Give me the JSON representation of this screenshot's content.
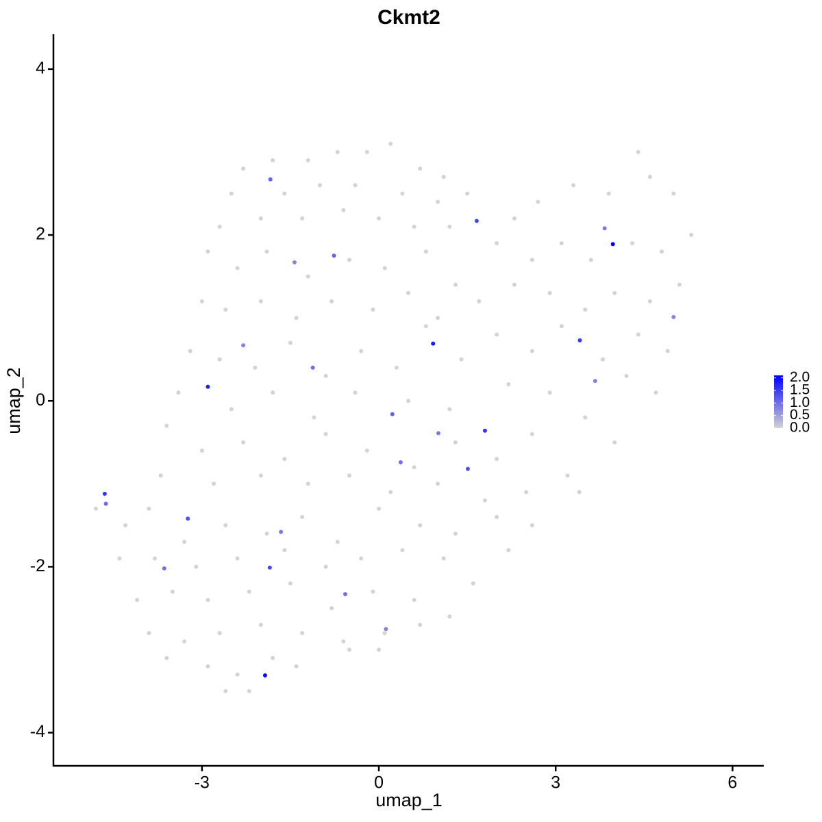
{
  "chart_data": {
    "type": "scatter",
    "title": "Ckmt2",
    "x_label": "umap_1",
    "y_label": "umap_2",
    "xlim": [
      -5.52,
      6.53
    ],
    "ylim": [
      -4.4,
      4.42
    ],
    "xticks": [
      -3,
      0,
      3,
      6
    ],
    "yticks": [
      -4,
      -2,
      0,
      2,
      4
    ],
    "low_color": "#d3d3d3",
    "high_color": "#0000ff",
    "colorbar_ticks": [
      {
        "value": 2,
        "label": "2.0"
      },
      {
        "value": 1.5,
        "label": "1.5"
      },
      {
        "value": 1,
        "label": "1.0"
      },
      {
        "value": 0.5,
        "label": "0.5"
      },
      {
        "value": 0,
        "label": "0.0"
      }
    ],
    "x": [
      -2.3,
      -1.8,
      -1.2,
      -0.7,
      -0.2,
      0.2,
      0.7,
      1.1,
      -2.5,
      -1.6,
      -1.0,
      -0.4,
      0.4,
      1.0,
      1.5,
      -2.7,
      -2.0,
      -1.3,
      -0.6,
      0.0,
      0.6,
      1.2,
      2.7,
      3.3,
      4.4,
      4.6,
      5.0,
      3.9,
      2.3,
      -2.9,
      -2.4,
      -1.9,
      -1.2,
      -0.5,
      0.1,
      0.8,
      1.3,
      2.0,
      2.6,
      3.1,
      3.6,
      4.3,
      4.8,
      5.3,
      -3.0,
      -2.6,
      -2.0,
      -1.4,
      -0.8,
      -0.1,
      0.5,
      1.0,
      1.7,
      2.3,
      2.9,
      3.5,
      4.0,
      4.6,
      5.1,
      -3.2,
      -2.7,
      -2.1,
      -1.5,
      -0.9,
      -0.3,
      0.3,
      0.8,
      1.4,
      2.0,
      2.6,
      3.1,
      3.8,
      4.4,
      4.9,
      -3.4,
      -2.5,
      -1.8,
      -1.1,
      -0.4,
      0.5,
      1.2,
      2.2,
      2.9,
      3.5,
      4.2,
      4.7,
      -3.6,
      -3.0,
      -2.3,
      -1.6,
      -0.9,
      -0.2,
      0.6,
      1.3,
      2.0,
      2.6,
      3.2,
      4.0,
      -3.7,
      -2.8,
      -2.0,
      -1.2,
      -0.5,
      0.2,
      1.0,
      1.8,
      2.5,
      3.4,
      -4.8,
      -4.3,
      -3.9,
      -3.3,
      -2.6,
      -1.9,
      -1.3,
      -0.7,
      0.0,
      0.7,
      1.3,
      2.0,
      2.6,
      -4.4,
      -3.8,
      -3.1,
      -2.4,
      -1.6,
      -0.9,
      -0.3,
      0.4,
      1.1,
      1.6,
      2.2,
      -4.1,
      -3.5,
      -2.9,
      -2.2,
      -1.5,
      -0.8,
      -0.1,
      0.6,
      1.2,
      -3.9,
      -3.3,
      -2.7,
      -2.0,
      -1.3,
      -0.6,
      0.1,
      0.7,
      -3.6,
      -2.9,
      -2.4,
      -1.8,
      -1.4,
      -0.5,
      0.0,
      -2.6,
      -2.2,
      -4.65,
      -4.63,
      -2.9,
      -1.93,
      3.97,
      0.92,
      1.8,
      3.41,
      1.66,
      1.51,
      -3.24,
      -1.85,
      -1.84,
      -0.76,
      -1.12,
      0.37,
      0.23,
      -0.57,
      5.0,
      3.83,
      1.01,
      3.67,
      -2.3,
      -3.64,
      -1.66,
      0.12,
      -1.43
    ],
    "y": [
      2.8,
      2.9,
      2.9,
      3.0,
      3.0,
      3.1,
      2.8,
      2.7,
      2.5,
      2.5,
      2.6,
      2.6,
      2.5,
      2.4,
      2.5,
      2.1,
      2.2,
      2.2,
      2.3,
      2.2,
      2.1,
      2.1,
      2.4,
      2.6,
      3.0,
      2.7,
      2.5,
      2.5,
      2.2,
      1.8,
      1.6,
      1.8,
      1.5,
      1.7,
      1.6,
      1.8,
      1.4,
      1.9,
      1.7,
      1.9,
      1.7,
      1.9,
      1.8,
      2.0,
      1.2,
      1.1,
      1.2,
      1.0,
      1.2,
      1.1,
      1.3,
      1.0,
      1.2,
      1.4,
      1.3,
      1.1,
      1.3,
      1.2,
      1.4,
      0.6,
      0.5,
      0.4,
      0.7,
      0.3,
      0.6,
      0.4,
      0.9,
      0.5,
      0.8,
      0.6,
      0.9,
      0.5,
      0.8,
      0.6,
      0.1,
      -0.1,
      0.1,
      -0.2,
      0.1,
      0.0,
      -0.1,
      0.2,
      0.1,
      -0.2,
      0.3,
      0.1,
      -0.3,
      -0.6,
      -0.5,
      -0.7,
      -0.4,
      -0.6,
      -0.8,
      -0.5,
      -0.7,
      -0.4,
      -0.9,
      -0.5,
      -0.9,
      -1.0,
      -0.9,
      -1.0,
      -0.9,
      -1.1,
      -1.0,
      -1.2,
      -1.1,
      -1.1,
      -1.3,
      -1.5,
      -1.3,
      -1.7,
      -1.5,
      -1.6,
      -1.4,
      -1.7,
      -1.3,
      -1.5,
      -1.6,
      -1.4,
      -1.5,
      -1.9,
      -1.9,
      -2.0,
      -1.9,
      -1.8,
      -2.0,
      -1.9,
      -1.8,
      -1.9,
      -2.2,
      -1.8,
      -2.4,
      -2.3,
      -2.4,
      -2.3,
      -2.2,
      -2.5,
      -2.3,
      -2.4,
      -2.6,
      -2.8,
      -2.9,
      -2.8,
      -2.7,
      -2.8,
      -2.9,
      -2.8,
      -2.7,
      -3.1,
      -3.2,
      -3.3,
      -3.1,
      -3.2,
      -3.0,
      -3.0,
      -3.5,
      -3.5,
      -1.12,
      -1.24,
      0.17,
      -3.31,
      1.89,
      0.69,
      -0.36,
      0.73,
      2.17,
      -0.82,
      -1.42,
      -2.01,
      2.67,
      1.75,
      0.4,
      -0.74,
      -0.16,
      -2.33,
      1.01,
      2.08,
      -0.39,
      0.24,
      0.67,
      -2.02,
      -1.58,
      -2.75,
      1.67
    ],
    "values": [
      0,
      0,
      0,
      0,
      0,
      0,
      0,
      0,
      0,
      0,
      0,
      0,
      0,
      0,
      0,
      0,
      0,
      0,
      0,
      0,
      0,
      0,
      0,
      0,
      0,
      0,
      0,
      0,
      0,
      0,
      0,
      0,
      0,
      0,
      0,
      0,
      0,
      0,
      0,
      0,
      0,
      0,
      0,
      0,
      0,
      0,
      0,
      0,
      0,
      0,
      0,
      0,
      0,
      0,
      0,
      0,
      0,
      0,
      0,
      0,
      0,
      0,
      0,
      0,
      0,
      0,
      0,
      0,
      0,
      0,
      0,
      0,
      0,
      0,
      0,
      0,
      0,
      0,
      0,
      0,
      0,
      0,
      0,
      0,
      0,
      0,
      0,
      0,
      0,
      0,
      0,
      0,
      0,
      0,
      0,
      0,
      0,
      0,
      0,
      0,
      0,
      0,
      0,
      0,
      0,
      0,
      0,
      0,
      0,
      0,
      0,
      0,
      0,
      0,
      0,
      0,
      0,
      0,
      0,
      0,
      0,
      0,
      0,
      0,
      0,
      0,
      0,
      0,
      0,
      0,
      0,
      0,
      0,
      0,
      0,
      0,
      0,
      0,
      0,
      0,
      0,
      0,
      0,
      0,
      0,
      0,
      0,
      0,
      0,
      0,
      0,
      0,
      0,
      0,
      0,
      0,
      0,
      0,
      1.6,
      1.0,
      1.8,
      2.0,
      2.1,
      1.9,
      1.6,
      1.5,
      1.4,
      1.3,
      1.3,
      1.4,
      1.1,
      1.1,
      1.0,
      1.0,
      1.1,
      1.0,
      0.8,
      0.9,
      0.9,
      0.8,
      0.8,
      1.0,
      0.9,
      0.8,
      0.8
    ]
  }
}
